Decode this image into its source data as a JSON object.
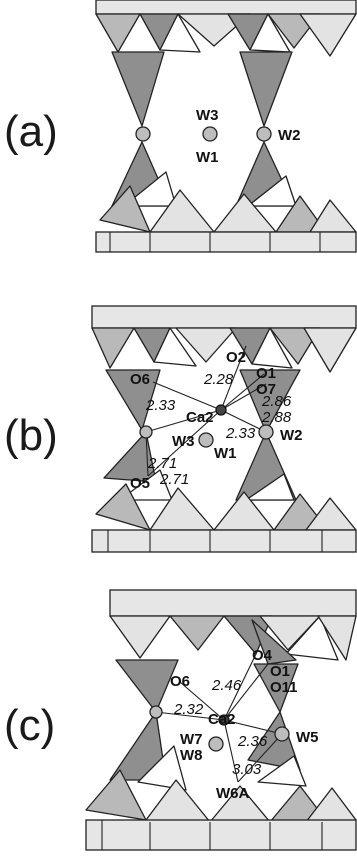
{
  "panels": [
    {
      "label": "(a)",
      "sites": [
        "W3",
        "W1",
        "W2"
      ],
      "distances": []
    },
    {
      "label": "(b)",
      "sites": [
        "O2",
        "O1",
        "O7",
        "O6",
        "Ca2",
        "W3",
        "W1",
        "W2",
        "O5"
      ],
      "distances": [
        "2.28",
        "2.86",
        "2.88",
        "2.33",
        "2.33",
        "2.71",
        "2.71"
      ]
    },
    {
      "label": "(c)",
      "sites": [
        "O4",
        "O1",
        "O11",
        "O6",
        "Ca2",
        "W7",
        "W8",
        "W5",
        "W6A"
      ],
      "distances": [
        "2.46",
        "2.32",
        "2.36",
        "3.03"
      ]
    }
  ]
}
